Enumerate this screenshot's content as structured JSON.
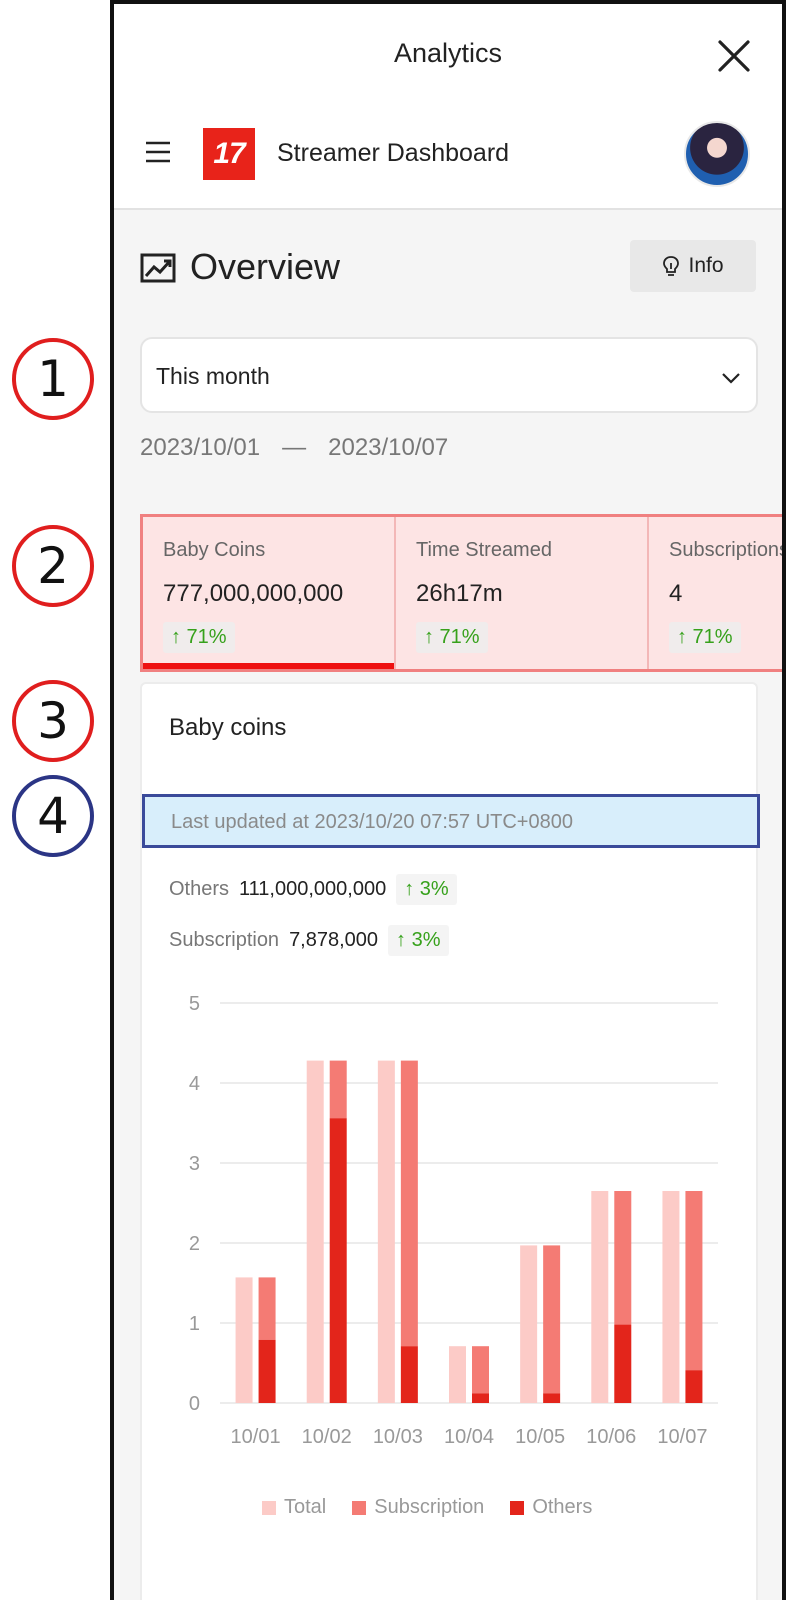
{
  "markers": [
    "1",
    "2",
    "3",
    "4"
  ],
  "header": {
    "title": "Analytics",
    "app_name": "Streamer Dashboard",
    "logo_text": "17"
  },
  "overview": {
    "title": "Overview",
    "info_label": "Info"
  },
  "filter": {
    "selected": "This month",
    "date_start": "2023/10/01",
    "date_sep": "—",
    "date_end": "2023/10/07"
  },
  "stats": [
    {
      "label": "Baby Coins",
      "value": "777,000,000,000",
      "trend": "↑ 71%"
    },
    {
      "label": "Time Streamed",
      "value": "26h17m",
      "trend": "↑ 71%"
    },
    {
      "label": "Subscriptions",
      "value": "4",
      "trend": "↑ 71%"
    }
  ],
  "card": {
    "title": "Baby coins",
    "updated": "Last updated at 2023/10/20 07:57 UTC+0800",
    "rows": [
      {
        "label": "Others",
        "value": "111,000,000,000",
        "trend": "↑ 3%"
      },
      {
        "label": "Subscription",
        "value": "7,878,000",
        "trend": "↑ 3%"
      }
    ]
  },
  "colors": {
    "total": "#fccbc7",
    "subscription": "#f47b74",
    "others": "#e3251b",
    "accent": "#ee1111"
  },
  "chart_data": {
    "type": "bar",
    "categories": [
      "10/01",
      "10/02",
      "10/03",
      "10/04",
      "10/05",
      "10/06",
      "10/07"
    ],
    "ylim": [
      0,
      5
    ],
    "yticks": [
      "0",
      "1",
      "2",
      "3",
      "4",
      "5"
    ],
    "series": [
      {
        "name": "Total",
        "values": [
          1.57,
          4.28,
          4.28,
          0.71,
          1.97,
          2.65,
          2.65
        ]
      },
      {
        "name": "Subscription",
        "values": [
          0.78,
          0.72,
          3.57,
          0.59,
          1.85,
          1.67,
          2.24
        ]
      },
      {
        "name": "Others",
        "values": [
          0.79,
          3.56,
          0.71,
          0.12,
          0.12,
          0.98,
          0.41
        ]
      }
    ],
    "grid": true,
    "legend": "bottom"
  }
}
